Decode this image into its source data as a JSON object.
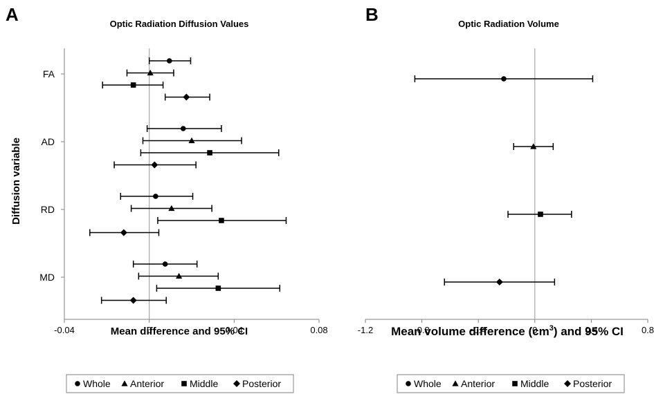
{
  "panels": {
    "a_letter": "A",
    "b_letter": "B"
  },
  "chart_data": [
    {
      "type": "forest",
      "title": "Optic Radiation Diffusion Values",
      "xlabel": "Mean difference and 95% CI",
      "ylabel": "Diffusion variable",
      "xlim": [
        -0.04,
        0.08
      ],
      "xticks": [
        "-0.04",
        "0",
        "0.04",
        "0.08"
      ],
      "xtick_values": [
        -0.04,
        0,
        0.04,
        0.08
      ],
      "reference_line": 0,
      "categories": [
        "FA",
        "AD",
        "RD",
        "MD"
      ],
      "series": [
        {
          "name": "Whole",
          "marker": "circle",
          "values": [
            0.0095,
            0.016,
            0.003,
            0.0075
          ],
          "ci_low": [
            0.0,
            -0.001,
            -0.0135,
            -0.0075
          ],
          "ci_high": [
            0.0195,
            0.034,
            0.0205,
            0.0225
          ]
        },
        {
          "name": "Anterior",
          "marker": "triangle",
          "values": [
            0.0005,
            0.02,
            0.0105,
            0.014
          ],
          "ci_low": [
            -0.0105,
            -0.003,
            -0.0085,
            -0.005
          ],
          "ci_high": [
            0.0115,
            0.0435,
            0.0295,
            0.0325
          ]
        },
        {
          "name": "Middle",
          "marker": "square",
          "values": [
            -0.0075,
            0.0285,
            0.034,
            0.0325
          ],
          "ci_low": [
            -0.022,
            -0.004,
            0.004,
            0.0035
          ],
          "ci_high": [
            0.0065,
            0.061,
            0.0645,
            0.0615
          ]
        },
        {
          "name": "Posterior",
          "marker": "diamond",
          "values": [
            0.0175,
            0.0025,
            -0.012,
            -0.0075
          ],
          "ci_low": [
            0.0075,
            -0.0165,
            -0.028,
            -0.0225
          ],
          "ci_high": [
            0.0285,
            0.022,
            0.0045,
            0.008
          ]
        }
      ]
    },
    {
      "type": "forest",
      "title": "Optic Radiation Volume",
      "xlabel_main": "Mean volume difference (cm",
      "xlabel_sup": "3",
      "xlabel_tail": ") and 95% CI",
      "xlim": [
        -1.2,
        0.8
      ],
      "xticks": [
        "-1.2",
        "-0.8",
        "-0.4",
        "0",
        "0.4",
        "0.8"
      ],
      "xtick_values": [
        -1.2,
        -0.8,
        -0.4,
        0,
        0.4,
        0.8
      ],
      "reference_line": 0,
      "series": [
        {
          "name": "Whole",
          "marker": "circle",
          "value": -0.22,
          "ci_low": -0.85,
          "ci_high": 0.41
        },
        {
          "name": "Anterior",
          "marker": "triangle",
          "value": -0.01,
          "ci_low": -0.15,
          "ci_high": 0.13
        },
        {
          "name": "Middle",
          "marker": "square",
          "value": 0.04,
          "ci_low": -0.19,
          "ci_high": 0.26
        },
        {
          "name": "Posterior",
          "marker": "diamond",
          "value": -0.25,
          "ci_low": -0.64,
          "ci_high": 0.14
        }
      ]
    }
  ],
  "legend": {
    "items": [
      "Whole",
      "Anterior",
      "Middle",
      "Posterior"
    ],
    "markers": [
      "circle",
      "triangle",
      "square",
      "diamond"
    ]
  },
  "colors": {
    "marks": "#000000",
    "reference_line": "#a6a6a6",
    "axis": "#808080",
    "legend_border": "#808080"
  }
}
